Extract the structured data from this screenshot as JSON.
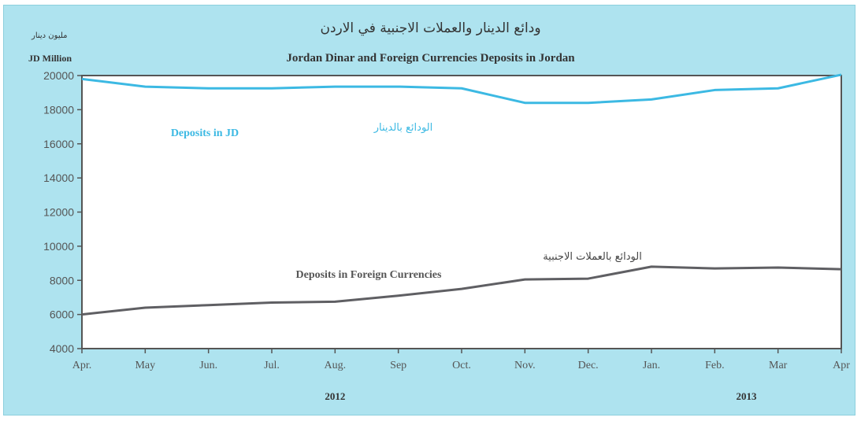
{
  "title_ar": "ودائع الدينار والعملات الاجنبية في الاردن",
  "title_en": "Jordan Dinar and Foreign Currencies Deposits in Jordan",
  "unit_ar": "مليون دينار",
  "unit_en": "JD Million",
  "colors": {
    "background": "#aee3ef",
    "plot_bg": "#ffffff",
    "jd_series": "#3cb9e3",
    "fc_series": "#5f5f63",
    "axis": "#555555"
  },
  "chart_data": {
    "type": "line",
    "title": "Jordan Dinar and Foreign Currencies Deposits in Jordan",
    "ylabel": "JD Million",
    "ylim": [
      4000,
      20000
    ],
    "yticks": [
      4000,
      6000,
      8000,
      10000,
      12000,
      14000,
      16000,
      18000,
      20000
    ],
    "grid": false,
    "categories": [
      "Apr.",
      "May",
      "Jun.",
      "Jul.",
      "Aug.",
      "Sep",
      "Oct.",
      "Nov.",
      "Dec.",
      "Jan.",
      "Feb.",
      "Mar",
      "Apr"
    ],
    "years": [
      {
        "label": "2012",
        "center_index": 4
      },
      {
        "label": "2013",
        "center_index": 10.5
      }
    ],
    "series": [
      {
        "key": "jd",
        "label_en": "Deposits in JD",
        "label_ar": "الودائع بالدينار",
        "values": [
          19800,
          19350,
          19250,
          19250,
          19350,
          19350,
          19250,
          18400,
          18400,
          18600,
          19150,
          19250,
          20050
        ]
      },
      {
        "key": "fc",
        "label_en": "Deposits in Foreign Currencies",
        "label_ar": "الودائع بالعملات الاجنبية",
        "values": [
          6000,
          6400,
          6550,
          6700,
          6750,
          7100,
          7500,
          8050,
          8100,
          8800,
          8700,
          8750,
          8650
        ]
      }
    ]
  }
}
